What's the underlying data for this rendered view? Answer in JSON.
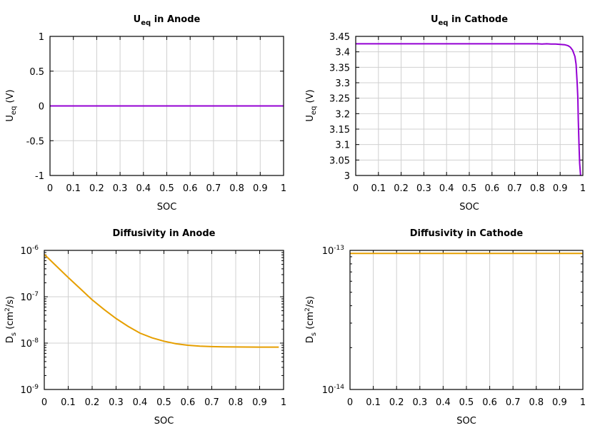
{
  "chart_data": [
    {
      "type": "line",
      "title": "U",
      "title_sub": "eq",
      "title_tail": " in Anode",
      "xlabel": "SOC",
      "ylabel": "U",
      "ylabel_sub": "eq",
      "ylabel_tail": " (V)",
      "xlim": [
        0,
        1
      ],
      "ylim": [
        -1,
        1
      ],
      "yscale": "linear",
      "grid": true,
      "xticks": [
        "0",
        "0.1",
        "0.2",
        "0.3",
        "0.4",
        "0.5",
        "0.6",
        "0.7",
        "0.8",
        "0.9",
        "1"
      ],
      "yticks": [
        "-1",
        "-0.5",
        "0",
        "0.5",
        "1"
      ],
      "series": [
        {
          "color": "#9400d3",
          "x": [
            0,
            1
          ],
          "y": [
            0,
            0
          ]
        }
      ]
    },
    {
      "type": "line",
      "title": "U",
      "title_sub": "eq",
      "title_tail": " in Cathode",
      "xlabel": "SOC",
      "ylabel": "U",
      "ylabel_sub": "eq",
      "ylabel_tail": " (V)",
      "xlim": [
        0,
        1
      ],
      "ylim": [
        3,
        3.45
      ],
      "yscale": "linear",
      "grid": true,
      "xticks": [
        "0",
        "0.1",
        "0.2",
        "0.3",
        "0.4",
        "0.5",
        "0.6",
        "0.7",
        "0.8",
        "0.9",
        "1"
      ],
      "yticks": [
        "3",
        "3.05",
        "3.1",
        "3.15",
        "3.2",
        "3.25",
        "3.3",
        "3.35",
        "3.4",
        "3.45"
      ],
      "series": [
        {
          "color": "#9400d3",
          "x": [
            0,
            0.1,
            0.2,
            0.3,
            0.4,
            0.5,
            0.6,
            0.7,
            0.8,
            0.82,
            0.84,
            0.86,
            0.88,
            0.9,
            0.92,
            0.935,
            0.945,
            0.955,
            0.965,
            0.97,
            0.975,
            0.978,
            0.98,
            0.983,
            0.986,
            0.99
          ],
          "y": [
            3.426,
            3.426,
            3.426,
            3.426,
            3.426,
            3.426,
            3.426,
            3.426,
            3.426,
            3.425,
            3.426,
            3.425,
            3.425,
            3.424,
            3.423,
            3.42,
            3.415,
            3.405,
            3.385,
            3.36,
            3.3,
            3.25,
            3.18,
            3.1,
            3.04,
            3.0
          ]
        }
      ]
    },
    {
      "type": "line",
      "title": "Diffusivity in Anode",
      "xlabel": "SOC",
      "ylabel": "D",
      "ylabel_sub": "s",
      "ylabel_tail": " (cm",
      "ylabel_sup": "2",
      "ylabel_end": "/s)",
      "xlim": [
        0,
        1
      ],
      "ylim": [
        1e-09,
        1e-06
      ],
      "yscale": "log",
      "grid": true,
      "xticks": [
        "0",
        "0.1",
        "0.2",
        "0.3",
        "0.4",
        "0.5",
        "0.6",
        "0.7",
        "0.8",
        "0.9",
        "1"
      ],
      "yticks": [
        {
          "base": "10",
          "exp": "-9",
          "value": 1e-09
        },
        {
          "base": "10",
          "exp": "-8",
          "value": 1e-08
        },
        {
          "base": "10",
          "exp": "-7",
          "value": 1e-07
        },
        {
          "base": "10",
          "exp": "-6",
          "value": 1e-06
        }
      ],
      "series": [
        {
          "color": "#e69f00",
          "x": [
            0,
            0.05,
            0.1,
            0.15,
            0.2,
            0.25,
            0.3,
            0.35,
            0.4,
            0.45,
            0.5,
            0.55,
            0.6,
            0.65,
            0.7,
            0.75,
            0.8,
            0.85,
            0.9,
            0.95,
            0.98
          ],
          "y": [
            8.2e-07,
            4.6e-07,
            2.6e-07,
            1.5e-07,
            8.6e-08,
            5.3e-08,
            3.4e-08,
            2.3e-08,
            1.64e-08,
            1.3e-08,
            1.1e-08,
            9.7e-09,
            9e-09,
            8.6e-09,
            8.4e-09,
            8.3e-09,
            8.25e-09,
            8.22e-09,
            8.2e-09,
            8.2e-09,
            8.2e-09
          ]
        }
      ]
    },
    {
      "type": "line",
      "title": "Diffusivity in Cathode",
      "xlabel": "SOC",
      "ylabel": "D",
      "ylabel_sub": "s",
      "ylabel_tail": " (cm",
      "ylabel_sup": "2",
      "ylabel_end": "/s)",
      "xlim": [
        0,
        1
      ],
      "ylim": [
        1e-14,
        1e-13
      ],
      "yscale": "log",
      "grid": true,
      "xticks": [
        "0",
        "0.1",
        "0.2",
        "0.3",
        "0.4",
        "0.5",
        "0.6",
        "0.7",
        "0.8",
        "0.9",
        "1"
      ],
      "yticks": [
        {
          "base": "10",
          "exp": "-14",
          "value": 1e-14
        },
        {
          "base": "10",
          "exp": "-13",
          "value": 1e-13
        }
      ],
      "series": [
        {
          "color": "#e69f00",
          "x": [
            0,
            1
          ],
          "y": [
            9.5e-14,
            9.5e-14
          ]
        }
      ]
    }
  ]
}
